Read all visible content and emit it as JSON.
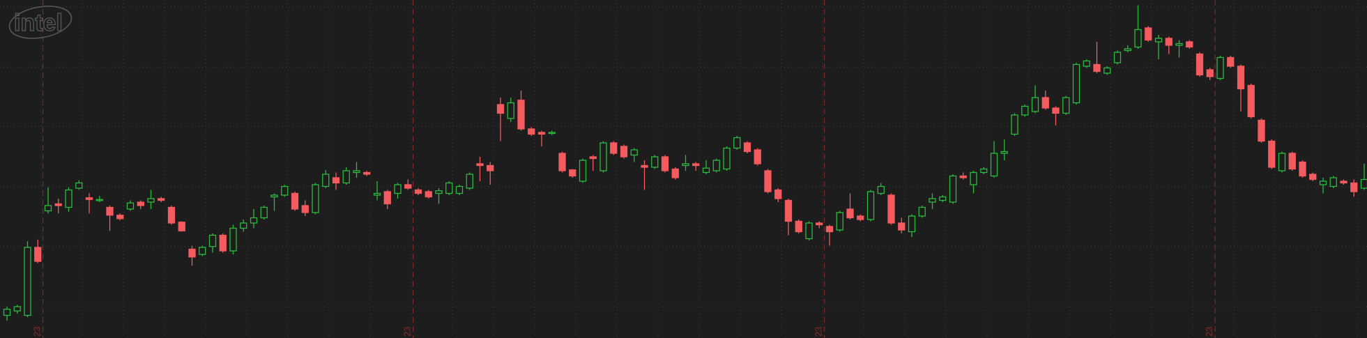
{
  "logo": "intel",
  "chart_data": {
    "type": "candlestick",
    "categories": [
      null,
      null,
      null,
      null,
      "23",
      null,
      null,
      null,
      null,
      null,
      null,
      null,
      null,
      null,
      null,
      null,
      null,
      null,
      null,
      null,
      null,
      null,
      null,
      null,
      null,
      null,
      null,
      null,
      null,
      null,
      null,
      null,
      null,
      null,
      null,
      null,
      null,
      null,
      null,
      null,
      "23",
      null,
      null,
      null,
      null,
      null,
      null,
      null,
      null,
      null,
      null,
      null,
      null,
      null,
      null,
      null,
      null,
      null,
      null,
      null,
      null,
      null,
      null,
      null,
      null,
      null,
      null,
      null,
      null,
      null,
      null,
      null,
      null,
      null,
      null,
      null,
      null,
      null,
      null,
      null,
      "23",
      null,
      null,
      null,
      null,
      null,
      null,
      null,
      null,
      null,
      null,
      null,
      null,
      null,
      null,
      null,
      null,
      null,
      null,
      null,
      null,
      null,
      null,
      null,
      null,
      null,
      null,
      null,
      null,
      null,
      null,
      null,
      null,
      null,
      null,
      null,
      null,
      null,
      "23",
      null,
      null,
      null,
      null,
      null,
      null,
      null,
      null,
      null,
      null,
      null,
      null,
      null,
      null
    ],
    "open": [
      26,
      31,
      26,
      104,
      146,
      154,
      150,
      172,
      161,
      158,
      150,
      141,
      148,
      156,
      156,
      160,
      150,
      133,
      102,
      96,
      105,
      118,
      100,
      126,
      132,
      138,
      162,
      164,
      166,
      152,
      144,
      174,
      184,
      178,
      190,
      190,
      164,
      168,
      166,
      176,
      170,
      168,
      166,
      166,
      166,
      172,
      200,
      198,
      268,
      252,
      273,
      240,
      236,
      235,
      212,
      193,
      180,
      208,
      192,
      224,
      220,
      210,
      198,
      196,
      208,
      194,
      198,
      200,
      190,
      192,
      194,
      218,
      224,
      216,
      192,
      170,
      158,
      134,
      114,
      132,
      128,
      124,
      148,
      140,
      136,
      166,
      164,
      132,
      122,
      140,
      156,
      158,
      156,
      186,
      176,
      190,
      186,
      212,
      234,
      256,
      260,
      276,
      264,
      258,
      270,
      312,
      314,
      304,
      316,
      330,
      334,
      356,
      340,
      344,
      336,
      340,
      326,
      308,
      298,
      322,
      312,
      290,
      250,
      226,
      192,
      212,
      202,
      188,
      176,
      174,
      180,
      178,
      172
    ],
    "high": [
      36,
      38,
      111,
      113,
      173,
      160,
      173,
      181,
      166,
      163,
      152,
      143,
      158,
      158,
      170,
      162,
      152,
      134,
      106,
      106,
      120,
      120,
      130,
      136,
      148,
      152,
      166,
      176,
      168,
      158,
      178,
      193,
      190,
      196,
      202,
      192,
      180,
      170,
      178,
      182,
      172,
      170,
      172,
      180,
      176,
      190,
      208,
      202,
      276,
      276,
      284,
      242,
      238,
      238,
      214,
      194,
      206,
      210,
      226,
      226,
      222,
      218,
      204,
      210,
      210,
      196,
      210,
      202,
      204,
      206,
      220,
      232,
      226,
      218,
      194,
      172,
      160,
      136,
      134,
      134,
      130,
      146,
      166,
      142,
      170,
      178,
      166,
      138,
      142,
      152,
      166,
      164,
      188,
      190,
      192,
      196,
      226,
      228,
      258,
      268,
      290,
      284,
      266,
      278,
      316,
      320,
      340,
      312,
      330,
      336,
      382,
      358,
      348,
      346,
      342,
      342,
      328,
      310,
      324,
      324,
      314,
      292,
      252,
      228,
      214,
      214,
      204,
      190,
      184,
      186,
      182,
      182,
      200
    ],
    "low": [
      20,
      28,
      24,
      86,
      143,
      143,
      145,
      170,
      143,
      156,
      123,
      135,
      146,
      148,
      148,
      156,
      130,
      122,
      83,
      94,
      98,
      98,
      96,
      122,
      126,
      136,
      146,
      162,
      146,
      140,
      142,
      172,
      170,
      176,
      184,
      186,
      158,
      148,
      160,
      170,
      164,
      160,
      154,
      164,
      164,
      170,
      180,
      176,
      226,
      248,
      238,
      232,
      220,
      233,
      190,
      184,
      178,
      192,
      190,
      210,
      206,
      202,
      170,
      194,
      190,
      182,
      192,
      192,
      188,
      190,
      192,
      216,
      212,
      198,
      166,
      156,
      118,
      120,
      112,
      126,
      106,
      122,
      136,
      134,
      134,
      164,
      130,
      120,
      116,
      138,
      148,
      156,
      154,
      182,
      166,
      188,
      184,
      204,
      232,
      254,
      258,
      262,
      244,
      256,
      268,
      310,
      304,
      302,
      314,
      328,
      332,
      340,
      320,
      326,
      322,
      332,
      300,
      296,
      296,
      310,
      260,
      252,
      224,
      194,
      190,
      192,
      184,
      180,
      166,
      172,
      176,
      162,
      170
    ],
    "close": [
      33,
      36,
      104,
      88,
      152,
      152,
      170,
      178,
      159,
      159,
      141,
      137,
      155,
      152,
      160,
      158,
      132,
      123,
      93,
      104,
      118,
      100,
      126,
      132,
      138,
      150,
      164,
      174,
      148,
      144,
      176,
      188,
      178,
      192,
      192,
      188,
      166,
      154,
      176,
      172,
      166,
      162,
      169,
      178,
      174,
      188,
      198,
      192,
      258,
      270,
      240,
      234,
      234,
      236,
      192,
      186,
      204,
      206,
      224,
      212,
      208,
      216,
      196,
      208,
      192,
      184,
      200,
      198,
      195,
      204,
      218,
      230,
      214,
      200,
      168,
      160,
      134,
      122,
      132,
      130,
      122,
      144,
      138,
      136,
      168,
      174,
      132,
      124,
      140,
      150,
      160,
      162,
      186,
      184,
      190,
      194,
      212,
      214,
      256,
      266,
      276,
      264,
      258,
      276,
      314,
      318,
      306,
      310,
      328,
      332,
      354,
      342,
      344,
      336,
      338,
      334,
      302,
      300,
      322,
      312,
      286,
      254,
      226,
      196,
      212,
      194,
      186,
      182,
      180,
      184,
      178,
      168,
      182
    ],
    "up_color": "#2dbb3f",
    "down_color": "#f45b5f",
    "ylim": [
      0,
      388
    ],
    "yticks": [
      36,
      105,
      174,
      243,
      311,
      380
    ],
    "grid": true
  }
}
